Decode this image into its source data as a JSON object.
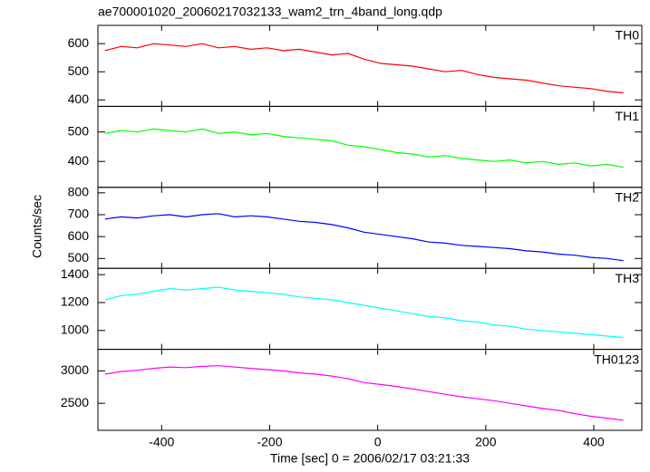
{
  "chart_data": {
    "type": "line",
    "title": "ae700001020_20060217032133_wam2_trn_4band_long.qdp",
    "x_label": "Time [sec] 0 = 2006/02/17 03:21:33",
    "y_label": "Counts/sec",
    "xlim": [
      -518,
      489
    ],
    "xticks": [
      -400,
      -200,
      0,
      200,
      400
    ],
    "x": [
      -505,
      -475,
      -445,
      -415,
      -385,
      -355,
      -325,
      -295,
      -265,
      -235,
      -205,
      -175,
      -145,
      -115,
      -85,
      -55,
      -25,
      5,
      35,
      65,
      95,
      125,
      155,
      185,
      215,
      245,
      275,
      305,
      335,
      365,
      395,
      425,
      455
    ],
    "panels": [
      {
        "name": "TH0",
        "color": "#ff0000",
        "ylim": [
          377,
          665
        ],
        "yticks": [
          400,
          500,
          600
        ],
        "values": [
          575,
          590,
          585,
          600,
          595,
          590,
          600,
          585,
          590,
          580,
          585,
          575,
          580,
          570,
          560,
          565,
          545,
          530,
          525,
          520,
          510,
          500,
          505,
          490,
          480,
          475,
          470,
          460,
          450,
          445,
          440,
          430,
          425
        ]
      },
      {
        "name": "TH1",
        "color": "#00ff00",
        "ylim": [
          312,
          587
        ],
        "yticks": [
          400,
          500
        ],
        "values": [
          495,
          505,
          500,
          510,
          505,
          500,
          510,
          495,
          500,
          490,
          495,
          485,
          480,
          475,
          470,
          455,
          450,
          440,
          430,
          425,
          415,
          420,
          410,
          405,
          400,
          405,
          395,
          400,
          390,
          395,
          385,
          390,
          380
        ]
      },
      {
        "name": "TH2",
        "color": "#0000ff",
        "ylim": [
          455,
          825
        ],
        "yticks": [
          500,
          600,
          700,
          800
        ],
        "values": [
          680,
          690,
          685,
          695,
          700,
          690,
          700,
          705,
          690,
          695,
          690,
          680,
          670,
          665,
          655,
          640,
          620,
          610,
          600,
          590,
          575,
          570,
          560,
          555,
          550,
          545,
          535,
          530,
          520,
          515,
          505,
          500,
          490
        ]
      },
      {
        "name": "TH3",
        "color": "#00ffff",
        "ylim": [
          865,
          1445
        ],
        "yticks": [
          1000,
          1200,
          1400
        ],
        "values": [
          1220,
          1250,
          1260,
          1280,
          1300,
          1290,
          1300,
          1310,
          1290,
          1280,
          1270,
          1260,
          1240,
          1230,
          1220,
          1200,
          1180,
          1160,
          1140,
          1120,
          1100,
          1090,
          1070,
          1060,
          1040,
          1030,
          1010,
          1000,
          990,
          980,
          970,
          960,
          950
        ]
      },
      {
        "name": "TH0123",
        "color": "#ff00ff",
        "ylim": [
          2083,
          3333
        ],
        "yticks": [
          2500,
          3000
        ],
        "values": [
          2950,
          2990,
          3010,
          3040,
          3060,
          3050,
          3070,
          3080,
          3060,
          3040,
          3020,
          3000,
          2970,
          2950,
          2920,
          2880,
          2820,
          2790,
          2760,
          2720,
          2680,
          2640,
          2600,
          2570,
          2540,
          2500,
          2460,
          2420,
          2390,
          2340,
          2300,
          2270,
          2240
        ]
      }
    ]
  }
}
